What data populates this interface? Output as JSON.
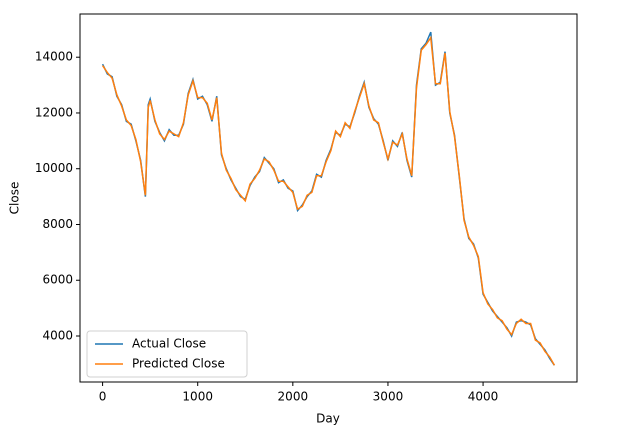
{
  "chart_data": {
    "type": "line",
    "x_label": "Day",
    "y_label": "Close",
    "x": [
      0,
      50,
      100,
      150,
      200,
      250,
      300,
      350,
      400,
      450,
      480,
      500,
      550,
      600,
      650,
      700,
      750,
      800,
      850,
      900,
      950,
      1000,
      1050,
      1100,
      1150,
      1200,
      1250,
      1300,
      1350,
      1400,
      1450,
      1500,
      1550,
      1600,
      1650,
      1700,
      1750,
      1800,
      1850,
      1900,
      1950,
      2000,
      2050,
      2100,
      2150,
      2200,
      2250,
      2300,
      2350,
      2400,
      2450,
      2500,
      2550,
      2600,
      2650,
      2700,
      2750,
      2800,
      2850,
      2900,
      2950,
      3000,
      3050,
      3100,
      3150,
      3200,
      3250,
      3300,
      3350,
      3400,
      3450,
      3500,
      3550,
      3600,
      3650,
      3700,
      3750,
      3800,
      3850,
      3900,
      3950,
      4000,
      4050,
      4100,
      4150,
      4200,
      4250,
      4300,
      4350,
      4400,
      4450,
      4500,
      4550,
      4600,
      4650,
      4700,
      4750
    ],
    "series": [
      {
        "name": "Actual Close",
        "color": "#1f77b4",
        "values": [
          13750,
          13400,
          13300,
          12600,
          12300,
          11700,
          11600,
          11000,
          10300,
          9000,
          12300,
          12500,
          11700,
          11300,
          11000,
          11400,
          11200,
          11200,
          11600,
          12700,
          13200,
          12500,
          12600,
          12300,
          11700,
          12600,
          10500,
          10000,
          9600,
          9300,
          9000,
          8900,
          9400,
          9700,
          9900,
          10400,
          10200,
          10000,
          9500,
          9600,
          9300,
          9200,
          8500,
          8700,
          9000,
          9200,
          9800,
          9700,
          10300,
          10700,
          11300,
          11200,
          11600,
          11500,
          12000,
          12600,
          13100,
          12200,
          11800,
          11600,
          11000,
          10300,
          11000,
          10800,
          11300,
          10300,
          9700,
          13000,
          14300,
          14500,
          14900,
          13000,
          13100,
          14200,
          12000,
          11200,
          9700,
          8200,
          7500,
          7300,
          6800,
          5500,
          5200,
          4900,
          4700,
          4500,
          4300,
          4000,
          4500,
          4550,
          4500,
          4400,
          3900,
          3700,
          3500,
          3200,
          2950
        ]
      },
      {
        "name": "Predicted Close",
        "color": "#ff7f0e",
        "values": [
          13700,
          13450,
          13250,
          12650,
          12250,
          11750,
          11550,
          11050,
          10250,
          9050,
          12200,
          12450,
          11750,
          11250,
          11050,
          11350,
          11250,
          11150,
          11650,
          12650,
          13150,
          12550,
          12550,
          12350,
          11750,
          12550,
          10550,
          9950,
          9650,
          9250,
          9050,
          8850,
          9450,
          9650,
          9950,
          10350,
          10250,
          9950,
          9550,
          9550,
          9350,
          9150,
          8550,
          8650,
          9050,
          9150,
          9750,
          9750,
          10250,
          10650,
          11350,
          11150,
          11650,
          11450,
          12050,
          12550,
          13050,
          12250,
          11750,
          11650,
          10950,
          10350,
          10950,
          10850,
          11250,
          10350,
          9750,
          12900,
          14250,
          14450,
          14700,
          13050,
          13050,
          14150,
          12050,
          11150,
          9750,
          8150,
          7550,
          7250,
          6850,
          5550,
          5150,
          4950,
          4650,
          4550,
          4250,
          4050,
          4450,
          4600,
          4450,
          4450,
          3850,
          3750,
          3450,
          3250,
          2950
        ]
      }
    ],
    "xlim": [
      -237.5,
      4987.5
    ],
    "xticks": [
      0,
      1000,
      2000,
      3000,
      4000
    ],
    "ylim": [
      2350,
      15550
    ],
    "yticks": [
      4000,
      6000,
      8000,
      10000,
      12000,
      14000
    ],
    "legend": "lower left",
    "grid": false
  }
}
